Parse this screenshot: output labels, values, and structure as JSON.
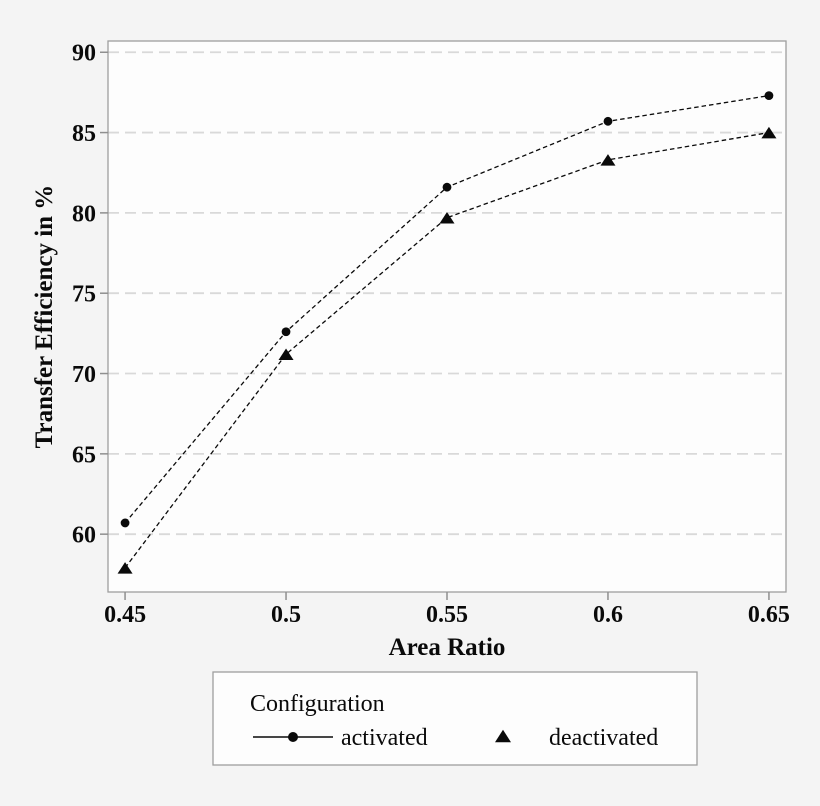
{
  "figure": {
    "background": "#f4f4f4"
  },
  "chart_data": {
    "type": "line",
    "title": "",
    "xlabel": "Area Ratio",
    "ylabel": "Transfer Efficiency in %",
    "x": [
      0.45,
      0.5,
      0.55,
      0.6,
      0.65
    ],
    "x_tick_labels": [
      "0.45",
      "0.5",
      "0.55",
      "0.6",
      "0.65"
    ],
    "y_ticks": [
      60,
      65,
      70,
      75,
      80,
      85,
      90
    ],
    "y_tick_labels": [
      "60",
      "65",
      "70",
      "75",
      "80",
      "85",
      "90"
    ],
    "xlim": [
      0.4447,
      0.6553
    ],
    "ylim": [
      56.4,
      90.7
    ],
    "grid": "horizontal-dashed",
    "series": [
      {
        "name": "activated",
        "marker": "circle",
        "line_style": "dashed",
        "values": [
          60.7,
          72.6,
          81.6,
          85.7,
          87.3
        ]
      },
      {
        "name": "deactivated",
        "marker": "triangle",
        "line_style": "dashed",
        "values": [
          57.9,
          71.2,
          79.7,
          83.3,
          85.0
        ]
      }
    ],
    "legend": {
      "title": "Configuration",
      "position": "bottom",
      "entries": [
        {
          "label": "activated",
          "marker": "circle-on-line"
        },
        {
          "label": "deactivated",
          "marker": "triangle"
        }
      ]
    },
    "colors": {
      "series": "#0a0a0a",
      "marker": "#0a0a0a",
      "grid": "#d9d9d9",
      "axis_border": "#9e9e9e",
      "tick": "#8f8f8f",
      "plot_bg": "#fdfdfd",
      "page_bg": "#f4f4f4",
      "text": "#0a0a0a"
    }
  }
}
